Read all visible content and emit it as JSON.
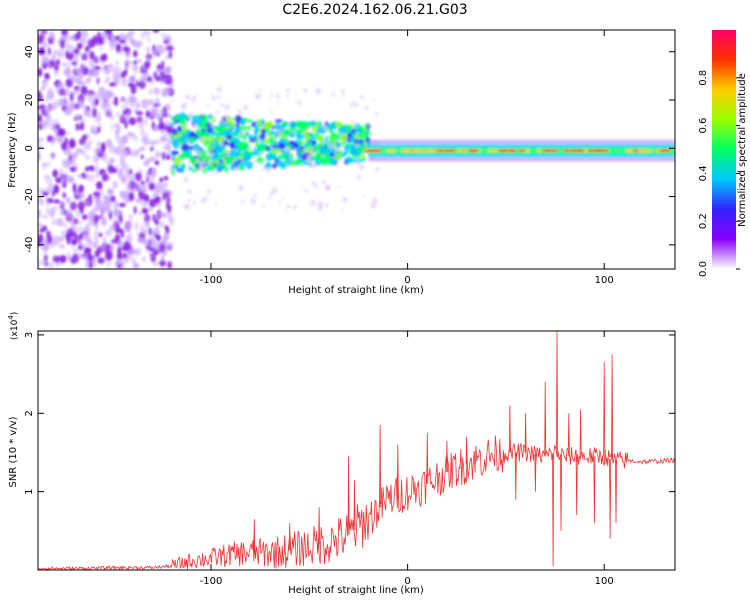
{
  "title": "C2E6.2024.162.06.21.G03",
  "colors": {
    "snr_line": "#ee3333",
    "frame": "#000000",
    "colorbar_stops": [
      "#ffffff",
      "#8800ff",
      "#3322ff",
      "#00c8ff",
      "#00ff66",
      "#99ff00",
      "#ffcc00",
      "#ff3300",
      "#ff0066"
    ]
  },
  "chart_data": [
    {
      "type": "heatmap",
      "xlabel": "Height of straight line (km)",
      "ylabel": "Frequency (Hz)",
      "xlim": [
        -188,
        136
      ],
      "ylim": [
        -50,
        49
      ],
      "xticks": [
        {
          "v": -100,
          "label": "-100"
        },
        {
          "v": 0,
          "label": "0"
        },
        {
          "v": 100,
          "label": "100"
        }
      ],
      "yticks": [
        {
          "v": -40,
          "label": "-40"
        },
        {
          "v": -20,
          "label": "-20"
        },
        {
          "v": 0,
          "label": "0"
        },
        {
          "v": 20,
          "label": "20"
        },
        {
          "v": 40,
          "label": "40"
        }
      ],
      "colorbar": {
        "label": "Normalized spectral amplitude",
        "range": [
          0,
          1
        ],
        "ticks": [
          {
            "v": 0.0,
            "label": "0.0"
          },
          {
            "v": 0.2,
            "label": "0.2"
          },
          {
            "v": 0.4,
            "label": "0.4"
          },
          {
            "v": 0.6,
            "label": "0.6"
          },
          {
            "v": 0.8,
            "label": "0.8"
          }
        ]
      },
      "regions": [
        {
          "name": "noise",
          "x": [
            -188,
            -120
          ],
          "y_center": 0,
          "y_half_width": 49,
          "amplitude": 0.15
        },
        {
          "name": "onset",
          "x": [
            -120,
            -20
          ],
          "y_center": 2,
          "y_half_width": 12,
          "amplitude": 0.35
        },
        {
          "name": "carrier",
          "x": [
            -20,
            136
          ],
          "y_center": -1,
          "y_half_width": 2.5,
          "amplitude": 0.9
        }
      ]
    },
    {
      "type": "line",
      "xlabel": "Height of straight line (km)",
      "ylabel": "SNR (10 * v/v)",
      "y_multiplier": "(x10",
      "y_multiplier_exp": "4",
      "y_multiplier_close": ")",
      "xlim": [
        -188,
        136
      ],
      "ylim": [
        0,
        3.05
      ],
      "xticks": [
        {
          "v": -100,
          "label": "-100"
        },
        {
          "v": 0,
          "label": "0"
        },
        {
          "v": 100,
          "label": "100"
        }
      ],
      "yticks": [
        {
          "v": 1,
          "label": "1"
        },
        {
          "v": 2,
          "label": "2"
        },
        {
          "v": 3,
          "label": "3"
        }
      ],
      "series": [
        {
          "x": [
            -188,
            -170,
            -150,
            -130,
            -120,
            -110,
            -100,
            -90,
            -80,
            -70,
            -60,
            -50,
            -40,
            -30,
            -20,
            -10,
            0,
            10,
            20,
            30,
            40,
            50,
            60,
            70,
            75,
            80,
            90,
            100,
            105,
            110,
            120,
            136
          ],
          "y": [
            0.02,
            0.02,
            0.03,
            0.03,
            0.05,
            0.12,
            0.15,
            0.2,
            0.22,
            0.22,
            0.25,
            0.3,
            0.35,
            0.45,
            0.65,
            0.9,
            1.0,
            1.1,
            1.25,
            1.35,
            1.45,
            1.5,
            1.5,
            1.45,
            1.5,
            1.45,
            1.45,
            1.45,
            1.4,
            1.4,
            1.38,
            1.4
          ]
        }
      ],
      "spikes": [
        {
          "x": 52,
          "y": 2.1
        },
        {
          "x": 55,
          "y": 0.9
        },
        {
          "x": 60,
          "y": 2.0
        },
        {
          "x": 65,
          "y": 1.0
        },
        {
          "x": 70,
          "y": 2.4
        },
        {
          "x": 74,
          "y": 0.05
        },
        {
          "x": 76,
          "y": 3.05
        },
        {
          "x": 78,
          "y": 0.5
        },
        {
          "x": 82,
          "y": 2.0
        },
        {
          "x": 86,
          "y": 0.7
        },
        {
          "x": 88,
          "y": 2.05
        },
        {
          "x": 95,
          "y": 0.6
        },
        {
          "x": 100,
          "y": 2.65
        },
        {
          "x": 103,
          "y": 0.4
        },
        {
          "x": 104,
          "y": 2.75
        },
        {
          "x": 106,
          "y": 0.6
        },
        {
          "x": -78,
          "y": 0.65
        },
        {
          "x": -60,
          "y": 0.6
        },
        {
          "x": -45,
          "y": 0.8
        },
        {
          "x": -30,
          "y": 1.45
        },
        {
          "x": -27,
          "y": 1.15
        },
        {
          "x": -14,
          "y": 1.85
        },
        {
          "x": -5,
          "y": 1.6
        },
        {
          "x": 10,
          "y": 1.75
        },
        {
          "x": 20,
          "y": 1.65
        },
        {
          "x": 30,
          "y": 1.7
        }
      ]
    }
  ]
}
